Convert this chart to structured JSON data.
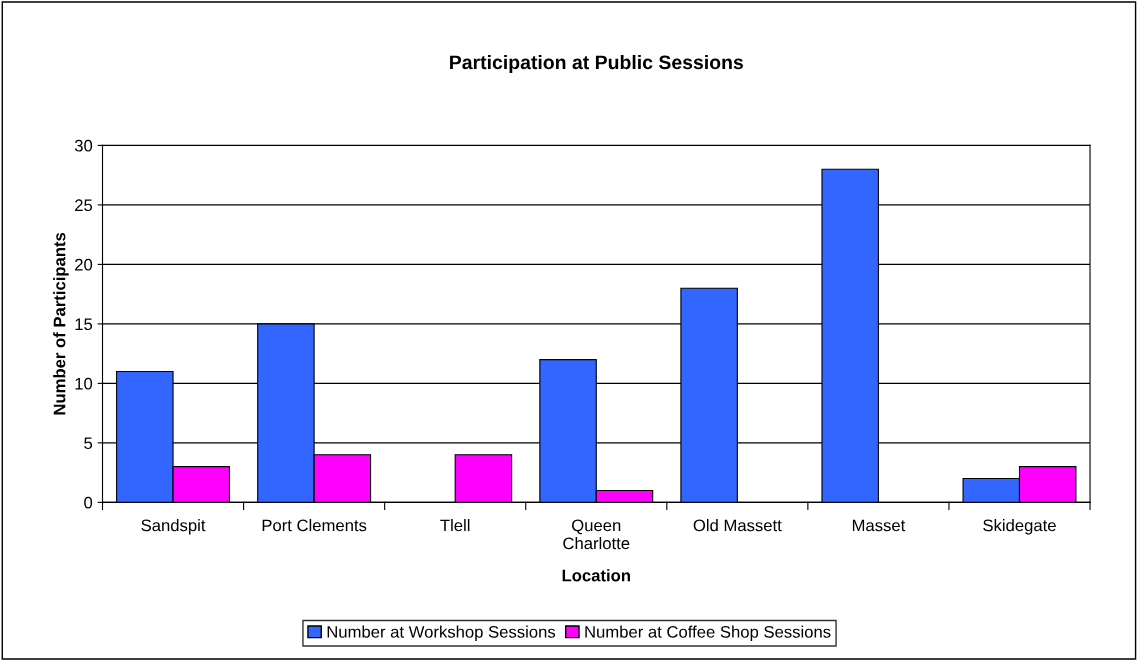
{
  "chart_data": {
    "type": "bar",
    "title": "Participation at Public Sessions",
    "xlabel": "Location",
    "ylabel": "Number of Participants",
    "categories": [
      "Sandspit",
      "Port Clements",
      "Tlell",
      "Queen\nCharlotte",
      "Old Massett",
      "Masset",
      "Skidegate"
    ],
    "series": [
      {
        "name": "Number at Workshop Sessions",
        "color": "#3366ff",
        "values": [
          11,
          15,
          null,
          12,
          18,
          28,
          2
        ]
      },
      {
        "name": "Number at Coffee Shop Sessions",
        "color": "#ff00ff",
        "values": [
          3,
          4,
          4,
          1,
          null,
          null,
          3
        ]
      }
    ],
    "ylim": [
      0,
      30
    ],
    "yticks": [
      0,
      5,
      10,
      15,
      20,
      25,
      30
    ],
    "grid": "y",
    "legend": "bottom"
  }
}
